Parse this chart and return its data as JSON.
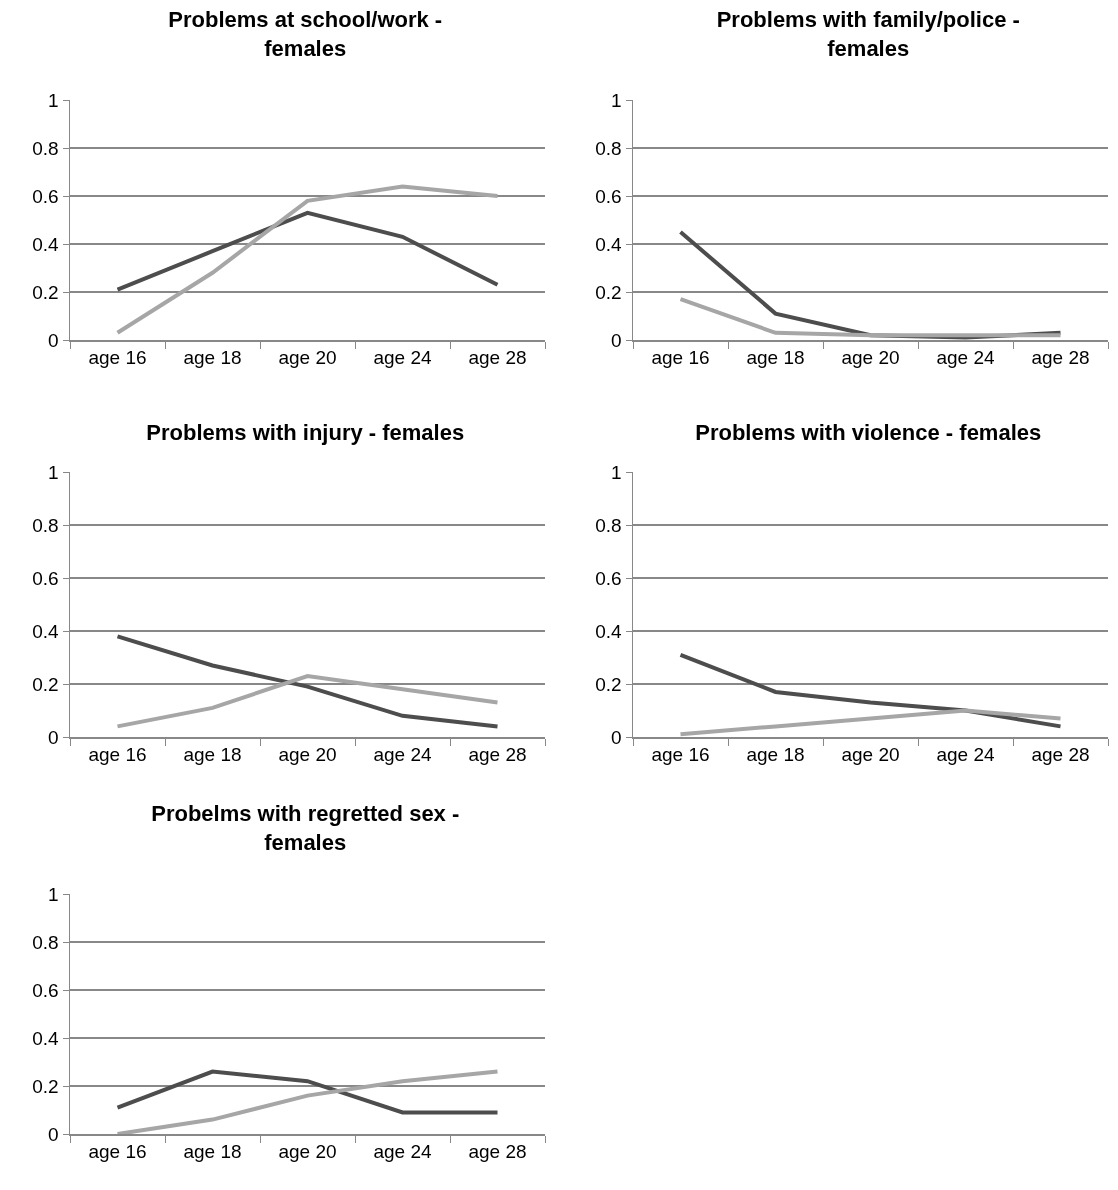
{
  "chart_data": [
    {
      "type": "line",
      "title": "Problems at school/work - females",
      "categories": [
        "age 16",
        "age 18",
        "age 20",
        "age 24",
        "age 28"
      ],
      "ylim": [
        0,
        1
      ],
      "yticks": [
        0,
        0.2,
        0.4,
        0.6,
        0.8,
        1
      ],
      "grid": "y",
      "marker": "none",
      "series": [
        {
          "color": "#4d4d4d",
          "values": [
            0.21,
            0.37,
            0.53,
            0.43,
            0.23
          ]
        },
        {
          "color": "#a6a6a6",
          "values": [
            0.03,
            0.28,
            0.58,
            0.64,
            0.6
          ]
        }
      ]
    },
    {
      "type": "line",
      "title": "Problems with family/police - females",
      "categories": [
        "age 16",
        "age 18",
        "age 20",
        "age 24",
        "age 28"
      ],
      "ylim": [
        0,
        1
      ],
      "yticks": [
        0,
        0.2,
        0.4,
        0.6,
        0.8,
        1
      ],
      "grid": "y",
      "marker": "none",
      "series": [
        {
          "color": "#4d4d4d",
          "values": [
            0.45,
            0.11,
            0.02,
            0.01,
            0.03
          ]
        },
        {
          "color": "#a6a6a6",
          "values": [
            0.17,
            0.03,
            0.02,
            0.02,
            0.02
          ]
        }
      ]
    },
    {
      "type": "line",
      "title": "Problems with injury - females",
      "categories": [
        "age 16",
        "age 18",
        "age 20",
        "age 24",
        "age 28"
      ],
      "ylim": [
        0,
        1
      ],
      "yticks": [
        0,
        0.2,
        0.4,
        0.6,
        0.8,
        1
      ],
      "grid": "y",
      "marker": "none",
      "series": [
        {
          "color": "#4d4d4d",
          "values": [
            0.38,
            0.27,
            0.19,
            0.08,
            0.04
          ]
        },
        {
          "color": "#a6a6a6",
          "values": [
            0.04,
            0.11,
            0.23,
            0.18,
            0.13
          ]
        }
      ]
    },
    {
      "type": "line",
      "title": "Problems with violence - females",
      "categories": [
        "age 16",
        "age 18",
        "age 20",
        "age 24",
        "age 28"
      ],
      "ylim": [
        0,
        1
      ],
      "yticks": [
        0,
        0.2,
        0.4,
        0.6,
        0.8,
        1
      ],
      "grid": "y",
      "marker": "none",
      "series": [
        {
          "color": "#4d4d4d",
          "values": [
            0.31,
            0.17,
            0.13,
            0.1,
            0.04
          ]
        },
        {
          "color": "#a6a6a6",
          "values": [
            0.01,
            0.04,
            0.07,
            0.1,
            0.07
          ]
        }
      ]
    },
    {
      "type": "line",
      "title": "Probelms with regretted sex - females",
      "categories": [
        "age 16",
        "age 18",
        "age 20",
        "age 24",
        "age 28"
      ],
      "ylim": [
        0,
        1
      ],
      "yticks": [
        0,
        0.2,
        0.4,
        0.6,
        0.8,
        1
      ],
      "grid": "y",
      "marker": "none",
      "series": [
        {
          "color": "#4d4d4d",
          "values": [
            0.11,
            0.26,
            0.22,
            0.09,
            0.09
          ]
        },
        {
          "color": "#a6a6a6",
          "values": [
            0.0,
            0.06,
            0.16,
            0.22,
            0.26
          ]
        }
      ]
    }
  ]
}
